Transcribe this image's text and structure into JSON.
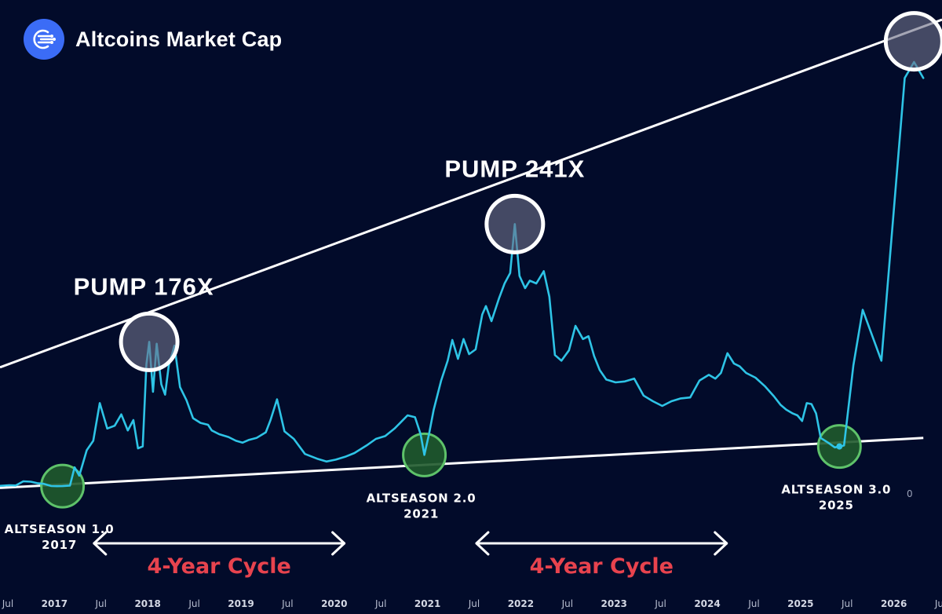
{
  "header": {
    "title": "Altcoins Market Cap",
    "logo_icon": "network-lines-icon"
  },
  "colors": {
    "background": "#020b2a",
    "line": "#2ec4e6",
    "trendline": "#ffffff",
    "peak_circle": "#6e7088",
    "bottom_circle": "#1f5a2c",
    "bottom_circle_stroke": "#5ec26a",
    "cycle_text": "#e8434e",
    "logo_bg": "#3b6cf6"
  },
  "chart_data": {
    "type": "line",
    "title": "",
    "xlabel": "",
    "ylabel": "",
    "x_ticks": [
      "Jul",
      "2017",
      "Jul",
      "2018",
      "Jul",
      "2019",
      "Jul",
      "2020",
      "Jul",
      "2021",
      "Jul",
      "2022",
      "Jul",
      "2023",
      "Jul",
      "2024",
      "Jul",
      "2025",
      "Jul",
      "2026",
      "Jul"
    ],
    "y_axis_label_visible": "0",
    "x_range": [
      2016.45,
      2026.55
    ],
    "grid": false,
    "series": [
      {
        "points": [
          [
            2016.45,
            0.52
          ],
          [
            2016.55,
            0.58
          ],
          [
            2016.62,
            0.56
          ],
          [
            2016.7,
            1.0
          ],
          [
            2016.78,
            0.96
          ],
          [
            2016.85,
            0.8
          ],
          [
            2016.92,
            0.73
          ],
          [
            2017.0,
            0.5
          ],
          [
            2017.06,
            0.48
          ],
          [
            2017.12,
            0.49
          ],
          [
            2017.2,
            0.55
          ],
          [
            2017.25,
            2.48
          ],
          [
            2017.3,
            1.6
          ],
          [
            2017.38,
            4.3
          ],
          [
            2017.45,
            5.3
          ],
          [
            2017.52,
            9.3
          ],
          [
            2017.6,
            6.6
          ],
          [
            2017.68,
            6.9
          ],
          [
            2017.75,
            8.1
          ],
          [
            2017.82,
            6.4
          ],
          [
            2017.88,
            7.5
          ],
          [
            2017.93,
            4.5
          ],
          [
            2017.98,
            4.7
          ],
          [
            2018.02,
            13.4
          ],
          [
            2018.05,
            15.8
          ],
          [
            2018.09,
            10.5
          ],
          [
            2018.13,
            15.6
          ],
          [
            2018.18,
            11.3
          ],
          [
            2018.22,
            10.2
          ],
          [
            2018.26,
            13.3
          ],
          [
            2018.32,
            15.4
          ],
          [
            2018.38,
            11.0
          ],
          [
            2018.45,
            9.6
          ],
          [
            2018.52,
            7.7
          ],
          [
            2018.6,
            7.2
          ],
          [
            2018.68,
            7.0
          ],
          [
            2018.72,
            6.4
          ],
          [
            2018.8,
            6.0
          ],
          [
            2018.9,
            5.7
          ],
          [
            2018.98,
            5.3
          ],
          [
            2019.05,
            5.1
          ],
          [
            2019.12,
            5.4
          ],
          [
            2019.2,
            5.6
          ],
          [
            2019.3,
            6.2
          ],
          [
            2019.35,
            7.5
          ],
          [
            2019.42,
            9.7
          ],
          [
            2019.5,
            6.3
          ],
          [
            2019.6,
            5.5
          ],
          [
            2019.72,
            3.9
          ],
          [
            2019.85,
            3.4
          ],
          [
            2019.95,
            3.1
          ],
          [
            2020.05,
            3.3
          ],
          [
            2020.15,
            3.6
          ],
          [
            2020.25,
            4.0
          ],
          [
            2020.38,
            4.8
          ],
          [
            2020.48,
            5.5
          ],
          [
            2020.58,
            5.8
          ],
          [
            2020.68,
            6.6
          ],
          [
            2020.76,
            7.4
          ],
          [
            2020.82,
            8.0
          ],
          [
            2020.9,
            7.8
          ],
          [
            2020.96,
            6.0
          ],
          [
            2021.0,
            3.8
          ],
          [
            2021.05,
            6.0
          ],
          [
            2021.1,
            8.6
          ],
          [
            2021.18,
            11.7
          ],
          [
            2021.25,
            13.8
          ],
          [
            2021.3,
            16.0
          ],
          [
            2021.36,
            14.0
          ],
          [
            2021.42,
            16.1
          ],
          [
            2021.48,
            14.5
          ],
          [
            2021.55,
            15.0
          ],
          [
            2021.62,
            18.7
          ],
          [
            2021.66,
            19.6
          ],
          [
            2021.72,
            18.0
          ],
          [
            2021.8,
            20.4
          ],
          [
            2021.86,
            22.0
          ],
          [
            2021.92,
            23.1
          ],
          [
            2021.97,
            28.3
          ],
          [
            2022.02,
            22.8
          ],
          [
            2022.08,
            21.5
          ],
          [
            2022.13,
            22.3
          ],
          [
            2022.2,
            22.0
          ],
          [
            2022.28,
            23.3
          ],
          [
            2022.34,
            20.6
          ],
          [
            2022.4,
            14.4
          ],
          [
            2022.47,
            13.8
          ],
          [
            2022.55,
            14.9
          ],
          [
            2022.62,
            17.5
          ],
          [
            2022.7,
            16.1
          ],
          [
            2022.76,
            16.4
          ],
          [
            2022.82,
            14.3
          ],
          [
            2022.88,
            12.8
          ],
          [
            2022.95,
            11.8
          ],
          [
            2023.05,
            11.5
          ],
          [
            2023.15,
            11.6
          ],
          [
            2023.25,
            11.9
          ],
          [
            2023.35,
            10.1
          ],
          [
            2023.45,
            9.5
          ],
          [
            2023.55,
            9.0
          ],
          [
            2023.65,
            9.5
          ],
          [
            2023.75,
            9.8
          ],
          [
            2023.85,
            9.9
          ],
          [
            2023.95,
            11.7
          ],
          [
            2024.05,
            12.3
          ],
          [
            2024.12,
            11.9
          ],
          [
            2024.18,
            12.5
          ],
          [
            2024.25,
            14.6
          ],
          [
            2024.32,
            13.5
          ],
          [
            2024.38,
            13.2
          ],
          [
            2024.45,
            12.5
          ],
          [
            2024.55,
            12.0
          ],
          [
            2024.65,
            11.1
          ],
          [
            2024.75,
            10.0
          ],
          [
            2024.82,
            9.1
          ],
          [
            2024.88,
            8.6
          ],
          [
            2024.95,
            8.2
          ],
          [
            2025.0,
            8.0
          ],
          [
            2025.05,
            7.4
          ],
          [
            2025.1,
            9.3
          ],
          [
            2025.15,
            9.2
          ],
          [
            2025.2,
            8.2
          ],
          [
            2025.25,
            5.6
          ],
          [
            2025.33,
            5.1
          ],
          [
            2025.4,
            4.6
          ],
          [
            2025.45,
            4.7
          ],
          [
            2025.5,
            4.8
          ],
          [
            2025.6,
            13.3
          ],
          [
            2025.7,
            19.2
          ],
          [
            2025.9,
            13.8
          ],
          [
            2026.15,
            43.8
          ],
          [
            2026.25,
            45.5
          ],
          [
            2026.35,
            43.8
          ]
        ]
      }
    ],
    "trendlines": [
      {
        "name": "upper",
        "points": [
          [
            2016.45,
            13.1
          ],
          [
            2026.55,
            50.0
          ]
        ]
      },
      {
        "name": "lower",
        "points": [
          [
            2016.45,
            0.3
          ],
          [
            2026.35,
            5.6
          ]
        ]
      }
    ],
    "annotations": {
      "pumps": [
        {
          "label": "PUMP 176X",
          "x": 2018.05,
          "y": 15.8
        },
        {
          "label": "PUMP 241X",
          "x": 2021.97,
          "y": 28.3
        },
        {
          "label": "",
          "x": 2026.25,
          "y": 47.7
        }
      ],
      "altseasons": [
        {
          "line1": "ALTSEASON 1.0",
          "line2": "2017",
          "x": 2017.12,
          "y": 0.49
        },
        {
          "line1": "ALTSEASON 2.0",
          "line2": "2021",
          "x": 2021.0,
          "y": 3.8
        },
        {
          "line1": "ALTSEASON 3.0",
          "line2": "2025",
          "x": 2025.45,
          "y": 4.7
        }
      ],
      "cycles": [
        {
          "label": "4-Year Cycle",
          "x_start": 2017.45,
          "x_end": 2020.15
        },
        {
          "label": "4-Year Cycle",
          "x_start": 2021.55,
          "x_end": 2024.25
        }
      ]
    }
  }
}
